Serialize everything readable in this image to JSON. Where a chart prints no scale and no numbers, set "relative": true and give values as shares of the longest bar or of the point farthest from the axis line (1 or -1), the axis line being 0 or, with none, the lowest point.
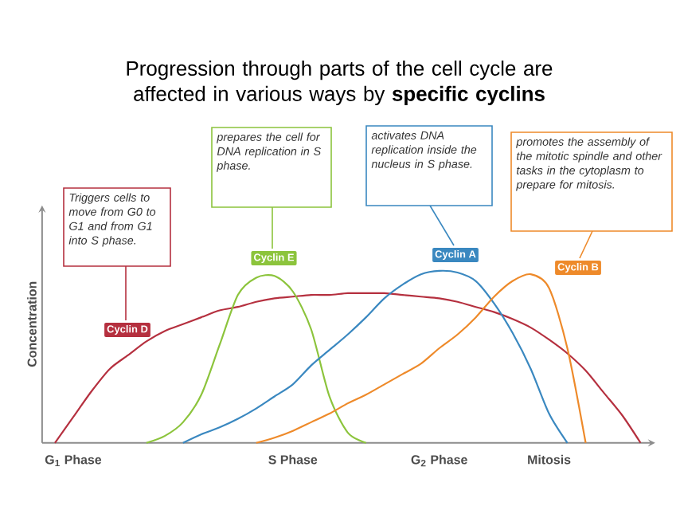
{
  "chart_data": {
    "type": "line",
    "relative": true,
    "title": "Progression through parts of the cell cycle are affected in various ways by **specific cyclins**",
    "ylabel": "Concentration",
    "tick_labels": "x",
    "categories": [
      null,
      "G$_{1}$ Phase",
      null,
      null,
      null,
      null,
      null,
      null,
      null,
      null,
      null,
      null,
      null,
      "S Phase",
      null,
      null,
      null,
      null,
      null,
      null,
      null,
      "G$_{2}$ Phase",
      null,
      null,
      null,
      null,
      null,
      "Mitosis",
      null,
      null,
      null,
      null,
      null
    ],
    "series": [
      {
        "name": "Cyclin D",
        "color": "#b5303f",
        "values": [
          0,
          0.15,
          0.3,
          0.43,
          0.51,
          0.59,
          0.65,
          0.69,
          0.73,
          0.77,
          0.79,
          0.82,
          0.84,
          0.85,
          0.86,
          0.86,
          0.87,
          0.87,
          0.87,
          0.86,
          0.85,
          0.84,
          0.82,
          0.79,
          0.76,
          0.72,
          0.67,
          0.6,
          0.52,
          0.42,
          0.29,
          0.16,
          0
        ]
      },
      {
        "name": "Cyclin E",
        "color": "#8cc43c",
        "values": [
          null,
          null,
          null,
          null,
          null,
          0,
          0.04,
          0.12,
          0.28,
          0.57,
          0.86,
          0.96,
          0.97,
          0.88,
          0.66,
          0.27,
          0.06,
          0,
          null,
          null,
          null,
          null,
          null,
          null,
          null,
          null,
          null,
          null,
          null,
          null,
          null,
          null,
          null
        ]
      },
      {
        "name": "Cyclin A",
        "color": "#3a88c0",
        "values": [
          null,
          null,
          null,
          null,
          null,
          null,
          null,
          0,
          0.05,
          0.09,
          0.14,
          0.2,
          0.27,
          0.34,
          0.45,
          0.54,
          0.63,
          0.73,
          0.84,
          0.92,
          0.98,
          1,
          0.99,
          0.94,
          0.81,
          0.64,
          0.43,
          0.17,
          0,
          null,
          null,
          null,
          null
        ]
      },
      {
        "name": "Cyclin B",
        "color": "#ee8a2a",
        "values": [
          null,
          null,
          null,
          null,
          null,
          null,
          null,
          null,
          null,
          null,
          null,
          0,
          0.03,
          0.07,
          0.12,
          0.17,
          0.23,
          0.28,
          0.34,
          0.4,
          0.46,
          0.55,
          0.63,
          0.73,
          0.85,
          0.94,
          0.98,
          0.9,
          0.55,
          0,
          null,
          null,
          null
        ]
      }
    ],
    "annotations": [
      "Triggers cells to move from G0 to G1 and from G1 into S phase.",
      "prepares the cell for DNA replication in S phase.",
      "activates DNA replication inside the nucleus in S phase.",
      "promotes the assembly of the mitotic spindle and other tasks in the cytoplasm to prepare for mitosis."
    ]
  }
}
